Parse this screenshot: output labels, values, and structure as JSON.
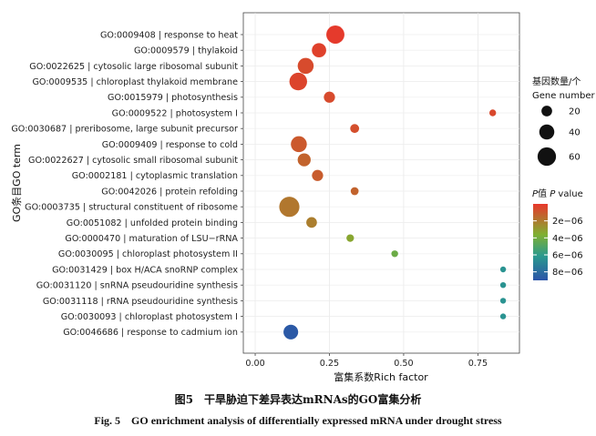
{
  "chart_data": {
    "type": "scatter",
    "title": "",
    "xlabel": "富集系数Rich factor",
    "ylabel": "GO条目GO term",
    "xlim": [
      -0.04,
      0.89
    ],
    "xticks": [
      0.0,
      0.25,
      0.5,
      0.75
    ],
    "xtick_labels": [
      "0.00",
      "0.25",
      "0.50",
      "0.75"
    ],
    "terms": [
      {
        "label": "GO:0009408 | response to heat",
        "rich_factor": 0.27,
        "gene_number": 58,
        "p_value": 1e-07
      },
      {
        "label": "GO:0009579 | thylakoid",
        "rich_factor": 0.215,
        "gene_number": 36,
        "p_value": 3e-07
      },
      {
        "label": "GO:0022625 | cytosolic large ribosomal subunit",
        "rich_factor": 0.17,
        "gene_number": 45,
        "p_value": 6e-07
      },
      {
        "label": "GO:0009535 | chloroplast thylakoid membrane",
        "rich_factor": 0.145,
        "gene_number": 55,
        "p_value": 4e-07
      },
      {
        "label": "GO:0015979 | photosynthesis",
        "rich_factor": 0.25,
        "gene_number": 22,
        "p_value": 6e-07
      },
      {
        "label": "GO:0009522 | photosystem I",
        "rich_factor": 0.8,
        "gene_number": 8,
        "p_value": 5e-07
      },
      {
        "label": "GO:0030687 | preribosome, large subunit precursor",
        "rich_factor": 0.335,
        "gene_number": 14,
        "p_value": 7e-07
      },
      {
        "label": "GO:0009409 | response to cold",
        "rich_factor": 0.147,
        "gene_number": 45,
        "p_value": 1e-06
      },
      {
        "label": "GO:0022627 | cytosolic small ribosomal subunit",
        "rich_factor": 0.165,
        "gene_number": 30,
        "p_value": 1.3e-06
      },
      {
        "label": "GO:0002181 | cytoplasmic translation",
        "rich_factor": 0.21,
        "gene_number": 22,
        "p_value": 1.1e-06
      },
      {
        "label": "GO:0042026 | protein refolding",
        "rich_factor": 0.335,
        "gene_number": 11,
        "p_value": 1.3e-06
      },
      {
        "label": "GO:0003735 | structural constituent of ribosome",
        "rich_factor": 0.115,
        "gene_number": 72,
        "p_value": 1.9e-06
      },
      {
        "label": "GO:0051082 | unfolded protein binding",
        "rich_factor": 0.19,
        "gene_number": 20,
        "p_value": 2.1e-06
      },
      {
        "label": "GO:0000470 | maturation of LSU−rRNA",
        "rich_factor": 0.32,
        "gene_number": 10,
        "p_value": 3.3e-06
      },
      {
        "label": "GO:0030095 | chloroplast photosystem II",
        "rich_factor": 0.47,
        "gene_number": 8,
        "p_value": 4.2e-06
      },
      {
        "label": "GO:0031429 | box H/ACA snoRNP complex",
        "rich_factor": 0.835,
        "gene_number": 6,
        "p_value": 6.4e-06
      },
      {
        "label": "GO:0031120 | snRNA pseudouridine synthesis",
        "rich_factor": 0.835,
        "gene_number": 6,
        "p_value": 6.4e-06
      },
      {
        "label": "GO:0031118 | rRNA pseudouridine synthesis",
        "rich_factor": 0.835,
        "gene_number": 6,
        "p_value": 6.4e-06
      },
      {
        "label": "GO:0030093 | chloroplast photosystem I",
        "rich_factor": 0.835,
        "gene_number": 6,
        "p_value": 6.4e-06
      },
      {
        "label": "GO:0046686 | response to cadmium ion",
        "rich_factor": 0.12,
        "gene_number": 38,
        "p_value": 8.8e-06
      }
    ],
    "size_legend": {
      "title_cn": "基因数量/个",
      "title_en": "Gene number",
      "values": [
        20,
        40,
        60
      ],
      "labels": [
        "20",
        "40",
        "60"
      ]
    },
    "color_legend": {
      "title_pre": "P",
      "title_cn": "值 ",
      "title_mid": "P",
      "title_suffix": " value",
      "range": [
        0,
        9e-06
      ],
      "ticks": [
        2e-06,
        4e-06,
        6e-06,
        8e-06
      ],
      "tick_labels": [
        "2e−06",
        "4e−06",
        "6e−06",
        "8e−06"
      ],
      "low_color": "#e8372c",
      "mid_low_color": "#7fb030",
      "mid_high_color": "#2a9a8e",
      "high_color": "#2b54a8"
    },
    "grid": true
  },
  "captions": {
    "cn": "图5　干旱胁迫下差异表达mRNAs的GO富集分析",
    "en": "Fig. 5　GO enrichment analysis of differentially expressed mRNA under drought stress"
  }
}
